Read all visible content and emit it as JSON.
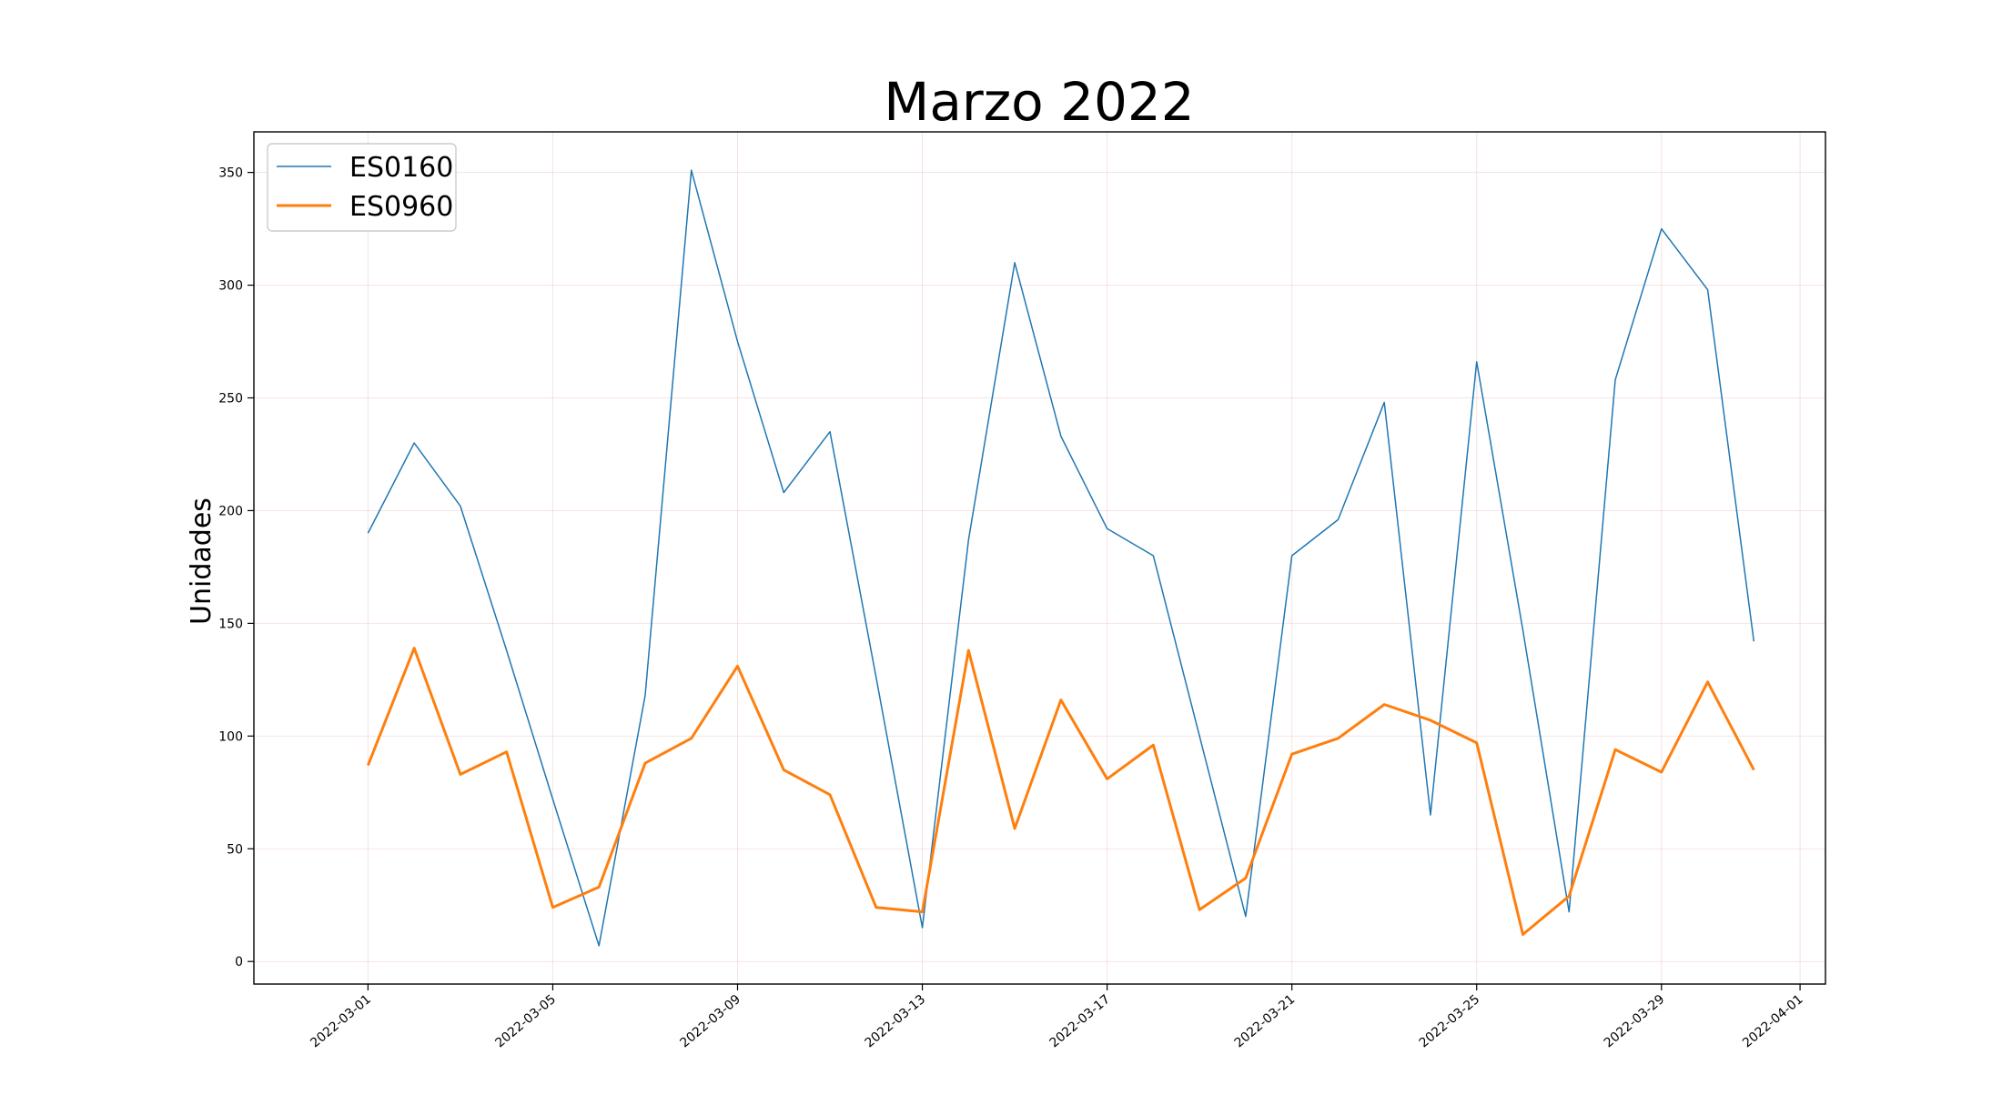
{
  "chart_data": {
    "type": "line",
    "title": "Marzo 2022",
    "xlabel": "",
    "ylabel": "Unidades",
    "x_axis_type": "date",
    "xlim": [
      "2022-02-27",
      "2022-04-01"
    ],
    "ylim": [
      -10,
      368
    ],
    "grid": true,
    "legend_position": "top-left",
    "x_ticks": [
      "2022-03-01",
      "2022-03-05",
      "2022-03-09",
      "2022-03-13",
      "2022-03-17",
      "2022-03-21",
      "2022-03-25",
      "2022-03-29",
      "2022-04-01"
    ],
    "y_ticks": [
      0,
      50,
      100,
      150,
      200,
      250,
      300,
      350
    ],
    "x": [
      "2022-03-01",
      "2022-03-02",
      "2022-03-03",
      "2022-03-04",
      "2022-03-05",
      "2022-03-06",
      "2022-03-07",
      "2022-03-08",
      "2022-03-09",
      "2022-03-10",
      "2022-03-11",
      "2022-03-12",
      "2022-03-13",
      "2022-03-14",
      "2022-03-15",
      "2022-03-16",
      "2022-03-17",
      "2022-03-18",
      "2022-03-19",
      "2022-03-20",
      "2022-03-21",
      "2022-03-22",
      "2022-03-23",
      "2022-03-24",
      "2022-03-25",
      "2022-03-26",
      "2022-03-27",
      "2022-03-28",
      "2022-03-29",
      "2022-03-30",
      "2022-03-31"
    ],
    "series": [
      {
        "name": "ES0160",
        "color": "#1f77b4",
        "values": [
          190,
          230,
          202,
          138,
          72,
          7,
          118,
          351,
          275,
          208,
          235,
          126,
          15,
          187,
          310,
          233,
          192,
          180,
          100,
          20,
          180,
          196,
          248,
          65,
          266,
          147,
          22,
          258,
          325,
          298,
          142
        ]
      },
      {
        "name": "ES0960",
        "color": "#ff7f0e",
        "values": [
          87,
          139,
          83,
          93,
          24,
          33,
          88,
          99,
          131,
          85,
          74,
          24,
          22,
          138,
          59,
          116,
          81,
          96,
          23,
          37,
          92,
          99,
          114,
          107,
          97,
          12,
          29,
          94,
          84,
          124,
          85
        ]
      }
    ]
  }
}
